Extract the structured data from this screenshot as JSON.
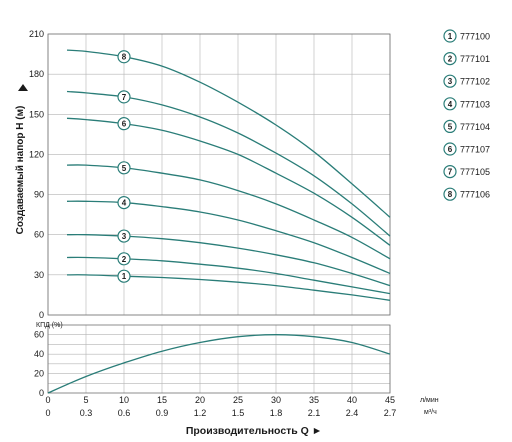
{
  "chart_data": [
    {
      "type": "line",
      "ylabel": "Создаваемый напор H (м)",
      "ylim": [
        0,
        210
      ],
      "yticks": [
        0,
        30,
        60,
        90,
        120,
        150,
        180,
        210
      ],
      "x_unit_label": "л/мин",
      "xlim": [
        0,
        45
      ],
      "xticks": [
        0,
        5,
        10,
        15,
        20,
        25,
        30,
        35,
        40,
        45
      ],
      "grid": true,
      "legend_position": "right",
      "x": [
        2.5,
        5,
        10,
        15,
        20,
        25,
        30,
        35,
        40,
        45
      ],
      "series": [
        {
          "name": "777100",
          "marker": "1",
          "values": [
            30,
            30,
            29,
            28,
            26.5,
            24.5,
            22,
            18.5,
            15,
            11
          ]
        },
        {
          "name": "777101",
          "marker": "2",
          "values": [
            43,
            43,
            42,
            40.5,
            38,
            35,
            31,
            26,
            21,
            16
          ]
        },
        {
          "name": "777102",
          "marker": "3",
          "values": [
            60,
            60,
            59,
            57,
            54,
            50,
            45,
            39,
            31,
            22
          ]
        },
        {
          "name": "777103",
          "marker": "4",
          "values": [
            85,
            85,
            84,
            81,
            77,
            71,
            63,
            54,
            43,
            31
          ]
        },
        {
          "name": "777104",
          "marker": "5",
          "values": [
            112,
            112,
            110,
            106,
            101,
            93,
            83,
            71,
            58,
            42
          ]
        },
        {
          "name": "777107",
          "marker": "6",
          "values": [
            147,
            146,
            143,
            138,
            130,
            120,
            106,
            91,
            73,
            52
          ]
        },
        {
          "name": "777105",
          "marker": "7",
          "values": [
            167,
            166,
            163,
            157,
            148,
            136,
            121,
            104,
            83,
            59
          ]
        },
        {
          "name": "777106",
          "marker": "8",
          "values": [
            198,
            197,
            193,
            186,
            174,
            159,
            142,
            122,
            98,
            73
          ]
        }
      ]
    },
    {
      "type": "line",
      "ylabel": "КПД (%)",
      "ylim": [
        0,
        70
      ],
      "yticks": [
        0,
        20,
        40,
        60
      ],
      "x_unit_label": "м³/ч",
      "xlabel": "Производительность Q ►",
      "xlim": [
        0,
        45
      ],
      "xticks": [
        0,
        5,
        10,
        15,
        20,
        25,
        30,
        35,
        40,
        45
      ],
      "x2ticks": [
        "0",
        "0.3",
        "0.6",
        "0.9",
        "1.2",
        "1.5",
        "1.8",
        "2.1",
        "2.4",
        "2.7"
      ],
      "grid": true,
      "x": [
        0,
        5,
        10,
        15,
        20,
        25,
        30,
        35,
        40,
        45
      ],
      "series": [
        {
          "values": [
            0,
            17,
            31,
            43,
            52,
            58,
            60,
            58,
            52,
            40
          ]
        }
      ]
    }
  ]
}
